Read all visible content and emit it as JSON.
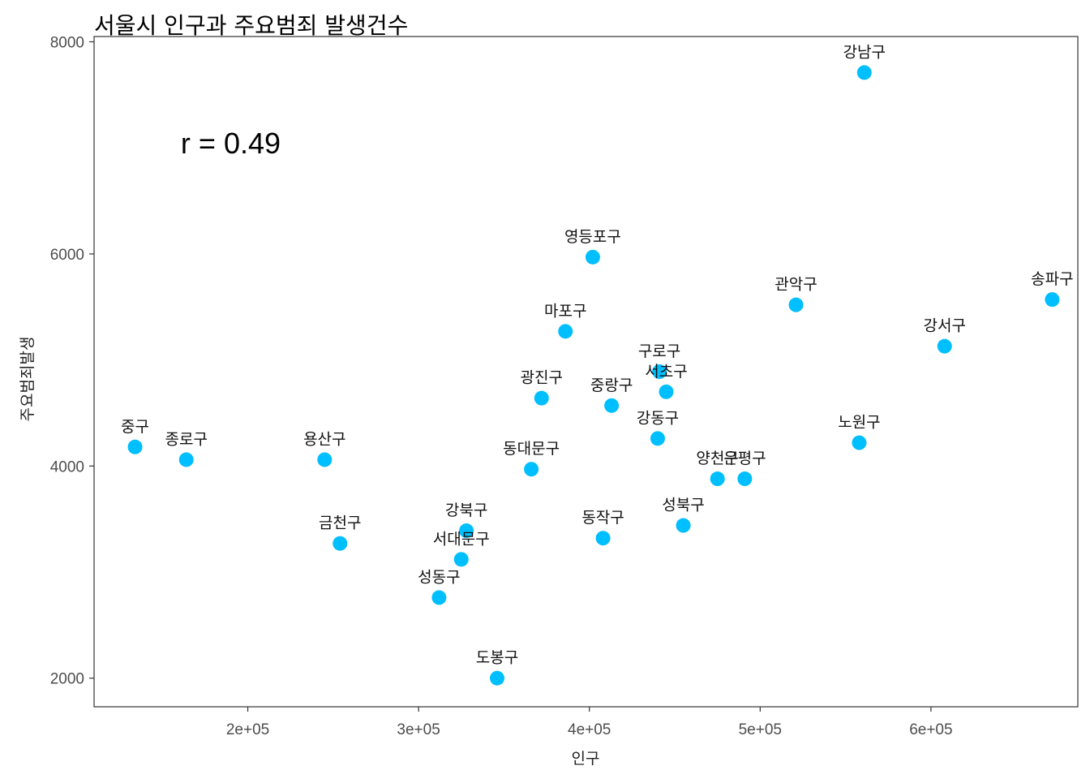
{
  "chart_data": {
    "type": "scatter",
    "title": "서울시 인구과 주요범죄 발생건수",
    "xlabel": "인구",
    "ylabel": "주요범죄발생",
    "xlim": [
      110000,
      686000
    ],
    "ylim": [
      1730,
      8050
    ],
    "x_ticks": [
      200000,
      300000,
      400000,
      500000,
      600000
    ],
    "x_tick_labels": [
      "2e+05",
      "3e+05",
      "4e+05",
      "5e+05",
      "6e+05"
    ],
    "y_ticks": [
      2000,
      4000,
      6000,
      8000
    ],
    "y_tick_labels": [
      "2000",
      "4000",
      "6000",
      "8000"
    ],
    "annotation": "r = 0.49",
    "annotation_pos": {
      "x": 190000,
      "y": 6950
    },
    "point_color": "#00bfff",
    "grid": false,
    "points": [
      {
        "label": "강남구",
        "x": 561000,
        "y": 7710
      },
      {
        "label": "송파구",
        "x": 671000,
        "y": 5570
      },
      {
        "label": "강서구",
        "x": 608000,
        "y": 5130
      },
      {
        "label": "관악구",
        "x": 521000,
        "y": 5520
      },
      {
        "label": "노원구",
        "x": 558000,
        "y": 4220
      },
      {
        "label": "영등포구",
        "x": 402000,
        "y": 5970
      },
      {
        "label": "마포구",
        "x": 386000,
        "y": 5270
      },
      {
        "label": "구로구",
        "x": 441000,
        "y": 4890
      },
      {
        "label": "서초구",
        "x": 445000,
        "y": 4700
      },
      {
        "label": "광진구",
        "x": 372000,
        "y": 4640
      },
      {
        "label": "중랑구",
        "x": 413000,
        "y": 4570
      },
      {
        "label": "강동구",
        "x": 440000,
        "y": 4260
      },
      {
        "label": "양천구",
        "x": 475000,
        "y": 3880
      },
      {
        "label": "은평구",
        "x": 491000,
        "y": 3880
      },
      {
        "label": "동대문구",
        "x": 366000,
        "y": 3970
      },
      {
        "label": "중구",
        "x": 134000,
        "y": 4180
      },
      {
        "label": "종로구",
        "x": 164000,
        "y": 4060
      },
      {
        "label": "용산구",
        "x": 245000,
        "y": 4060
      },
      {
        "label": "금천구",
        "x": 254000,
        "y": 3270
      },
      {
        "label": "강북구",
        "x": 328000,
        "y": 3390
      },
      {
        "label": "서대문구",
        "x": 325000,
        "y": 3120
      },
      {
        "label": "동작구",
        "x": 408000,
        "y": 3320
      },
      {
        "label": "성북구",
        "x": 455000,
        "y": 3440
      },
      {
        "label": "성동구",
        "x": 312000,
        "y": 2760
      },
      {
        "label": "도봉구",
        "x": 346000,
        "y": 2000
      }
    ]
  }
}
